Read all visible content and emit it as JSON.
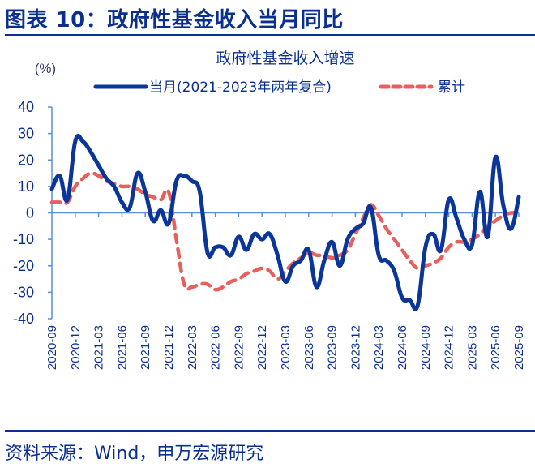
{
  "figure": {
    "title": "图表 10：政府性基金收入当月同比",
    "source": "资料来源：Wind，申万宏源研究"
  },
  "chart_data": {
    "type": "line",
    "title": "政府性基金收入增速",
    "ylabel": "(%)",
    "xlabel": "",
    "ylim": [
      -40,
      40
    ],
    "yticks": [
      "40",
      "30",
      "20",
      "10",
      "0",
      "-10",
      "-20",
      "-30",
      "-40"
    ],
    "ytick_values": [
      40,
      30,
      20,
      10,
      0,
      -10,
      -20,
      -30,
      -40
    ],
    "xtick_labels": [
      "2020-09",
      "2020-12",
      "2021-03",
      "2021-06",
      "2021-09",
      "2021-12",
      "2022-03",
      "2022-06",
      "2022-09",
      "2022-12",
      "2023-03",
      "2023-06",
      "2023-09",
      "2023-12",
      "2024-03",
      "2024-06",
      "2024-09",
      "2024-12",
      "2025-03",
      "2025-06",
      "2025-09"
    ],
    "x_start": "2020-09",
    "x_end": "2025-09",
    "grid": false,
    "legend_position": "top",
    "colors": {
      "axis": "#5b8fd6",
      "monthly": "#0a3599",
      "cumulative": "#e8605c",
      "text": "#0b2f8f"
    },
    "series": [
      {
        "name": "当月(2021-2023年两年复合)",
        "style": "solid",
        "values": [
          9,
          14,
          5,
          27,
          27,
          23,
          18,
          13,
          10,
          4,
          2,
          15,
          8,
          -3,
          1,
          -4,
          12,
          14,
          12,
          8,
          -15,
          -13,
          -13,
          -16,
          -9,
          -14,
          -8,
          -10,
          -8,
          -16,
          -26,
          -20,
          -18,
          -14,
          -28,
          -18,
          -11,
          -20,
          -10,
          -6,
          -4,
          2,
          -16,
          -18,
          -22,
          -32,
          -33,
          -35,
          -13,
          -8,
          -14,
          5,
          -2,
          -10,
          -12,
          8,
          -9,
          21,
          3,
          -6,
          6
        ]
      },
      {
        "name": "累计",
        "style": "dashed",
        "values": [
          4,
          4,
          4,
          10,
          13,
          15,
          14,
          12,
          11,
          10,
          10,
          9,
          7,
          6,
          5,
          8,
          -10,
          -27,
          -28,
          -27,
          -27,
          -29,
          -28,
          -26,
          -25,
          -23,
          -22,
          -21,
          -22,
          -25,
          -22,
          -19,
          -17,
          -15,
          -16,
          -16,
          -17,
          -16,
          -14,
          -8,
          -2,
          3,
          -1,
          -6,
          -10,
          -14,
          -18,
          -21,
          -20,
          -19,
          -17,
          -13,
          -11,
          -11,
          -10,
          -8,
          -5,
          -3,
          -1,
          0,
          0
        ]
      }
    ]
  }
}
